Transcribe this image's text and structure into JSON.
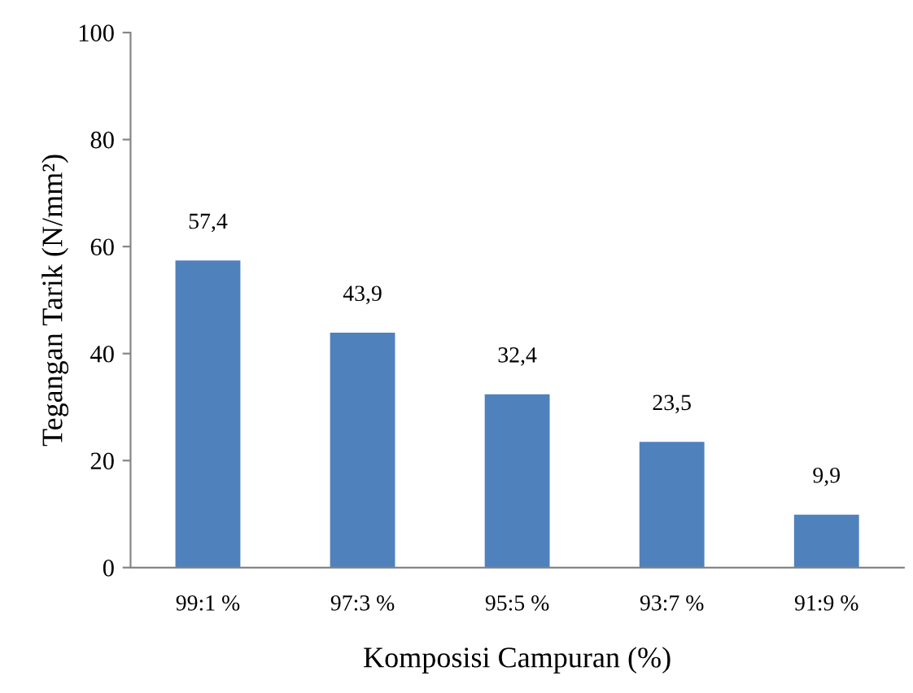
{
  "chart_data": {
    "type": "bar",
    "xlabel": "Komposisi Campuran (%)",
    "ylabel": "Tegangan Tarik (N/mm²)",
    "categories": [
      "99:1 %",
      "97:3 %",
      "95:5 %",
      "93:7 %",
      "91:9 %"
    ],
    "values": [
      57.4,
      43.9,
      32.4,
      23.5,
      9.9
    ],
    "value_labels": [
      "57,4",
      "43,9",
      "32,4",
      "23,5",
      "9,9"
    ],
    "color": "#4f81bd",
    "ylim": [
      0,
      100
    ],
    "yticks": [
      0,
      20,
      40,
      60,
      80,
      100
    ],
    "grid": false,
    "legend": false
  }
}
